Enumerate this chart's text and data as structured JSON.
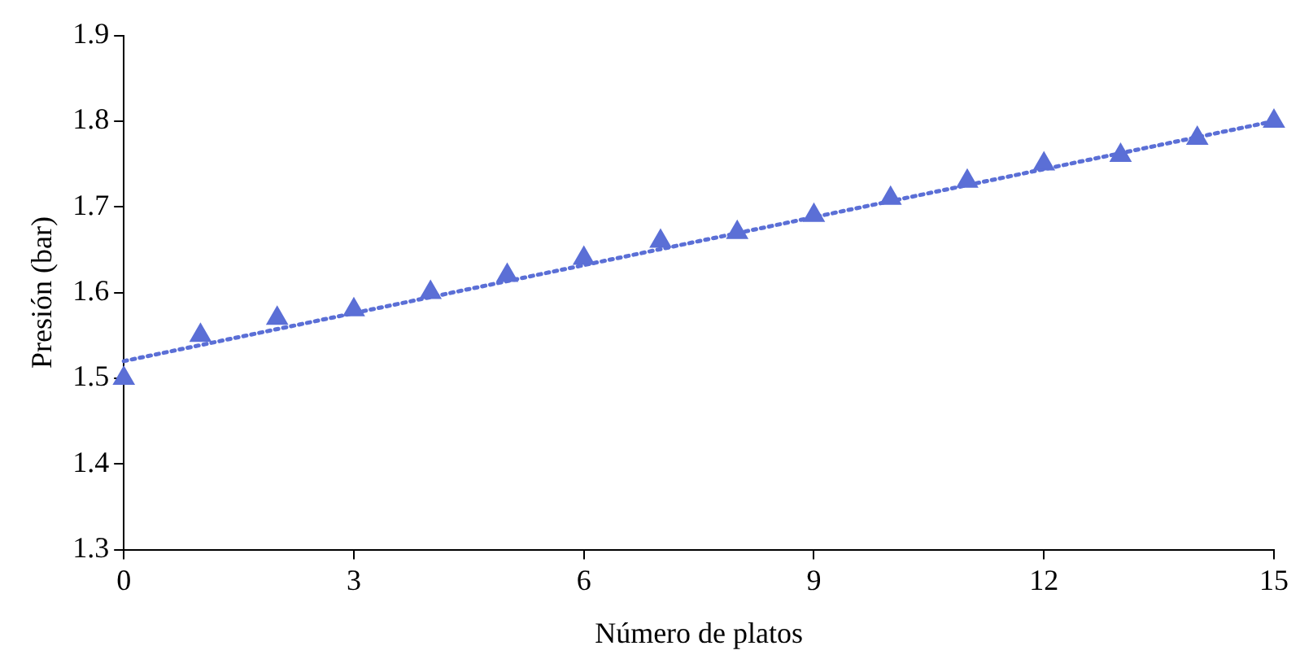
{
  "chart_data": {
    "type": "scatter",
    "xlabel": "Número de platos",
    "ylabel": "Presión (bar)",
    "x": [
      0,
      1,
      2,
      3,
      4,
      5,
      6,
      7,
      8,
      9,
      10,
      11,
      12,
      13,
      14,
      15
    ],
    "series": [
      {
        "type": "scatter",
        "color": "#5b6fd6",
        "marker": "triangle",
        "values": [
          1.5,
          1.55,
          1.57,
          1.58,
          1.6,
          1.62,
          1.64,
          1.66,
          1.67,
          1.69,
          1.71,
          1.73,
          1.75,
          1.76,
          1.78,
          1.8
        ]
      },
      {
        "type": "line",
        "color": "#5b6fd6",
        "marker": "none",
        "line_style": "dotted",
        "x": [
          0,
          15
        ],
        "values": [
          1.52,
          1.8
        ]
      }
    ],
    "xlim": [
      0,
      15
    ],
    "xticks": [
      0,
      3,
      6,
      9,
      12,
      15
    ],
    "ylim": [
      1.3,
      1.9
    ],
    "yticks": [
      1.3,
      1.4,
      1.5,
      1.6,
      1.7,
      1.8,
      1.9
    ],
    "grid": false,
    "legend": false
  }
}
